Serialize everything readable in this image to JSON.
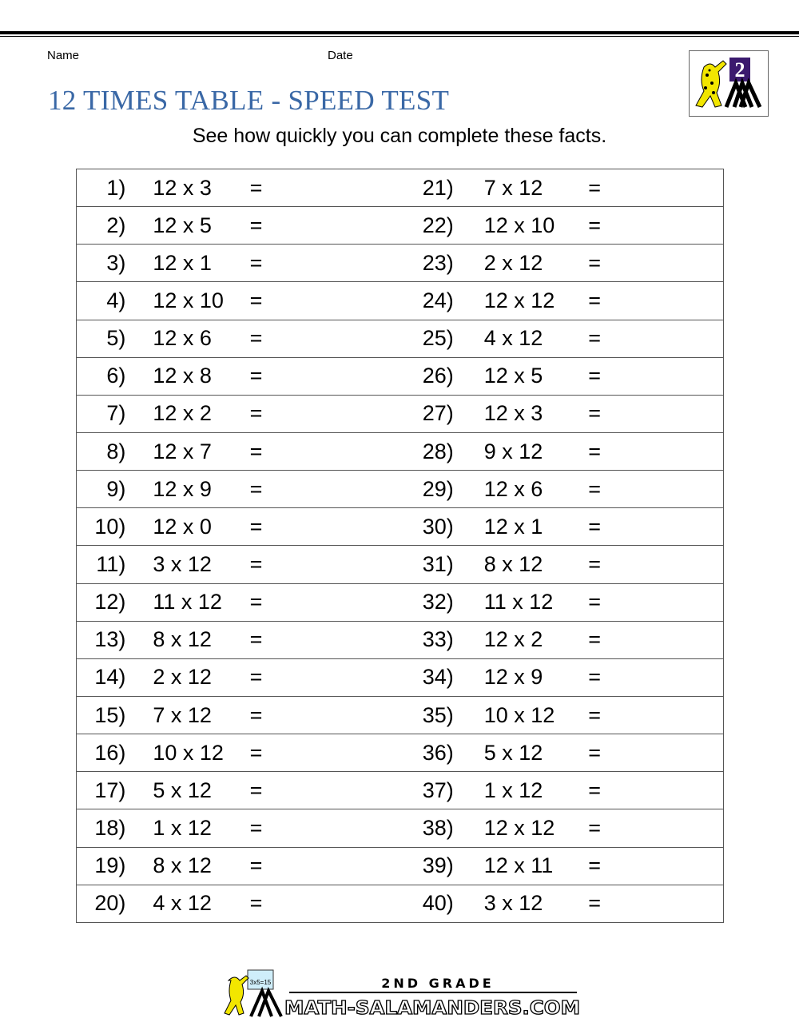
{
  "header": {
    "name_label": "Name",
    "date_label": "Date"
  },
  "title": "12 TIMES TABLE - SPEED TEST",
  "subtitle": "See how quickly you can complete these facts.",
  "colors": {
    "title": "#3a68a6",
    "logo_board": "#3b1a6e",
    "salamander": "#f2e600"
  },
  "logo": {
    "text": "2"
  },
  "questions": [
    {
      "num": "1)",
      "expr": "12 x 3",
      "eq": "="
    },
    {
      "num": "2)",
      "expr": "12 x 5",
      "eq": "="
    },
    {
      "num": "3)",
      "expr": "12 x 1",
      "eq": "="
    },
    {
      "num": "4)",
      "expr": "12 x 10",
      "eq": "="
    },
    {
      "num": "5)",
      "expr": "12 x 6",
      "eq": "="
    },
    {
      "num": "6)",
      "expr": "12 x 8",
      "eq": "="
    },
    {
      "num": "7)",
      "expr": "12 x 2",
      "eq": "="
    },
    {
      "num": "8)",
      "expr": "12 x 7",
      "eq": "="
    },
    {
      "num": "9)",
      "expr": "12 x 9",
      "eq": "="
    },
    {
      "num": "10)",
      "expr": "12 x 0",
      "eq": "="
    },
    {
      "num": "11)",
      "expr": "3 x 12",
      "eq": "="
    },
    {
      "num": "12)",
      "expr": "11 x 12",
      "eq": "="
    },
    {
      "num": "13)",
      "expr": "8 x 12",
      "eq": "="
    },
    {
      "num": "14)",
      "expr": "2 x 12",
      "eq": "="
    },
    {
      "num": "15)",
      "expr": "7 x 12",
      "eq": "="
    },
    {
      "num": "16)",
      "expr": "10 x 12",
      "eq": "="
    },
    {
      "num": "17)",
      "expr": "5 x 12",
      "eq": "="
    },
    {
      "num": "18)",
      "expr": "1 x 12",
      "eq": "="
    },
    {
      "num": "19)",
      "expr": "8 x 12",
      "eq": "="
    },
    {
      "num": "20)",
      "expr": "4 x 12",
      "eq": "="
    },
    {
      "num": "21)",
      "expr": "7 x 12",
      "eq": "="
    },
    {
      "num": "22)",
      "expr": "12 x 10",
      "eq": "="
    },
    {
      "num": "23)",
      "expr": "2 x 12",
      "eq": "="
    },
    {
      "num": "24)",
      "expr": "12 x 12",
      "eq": "="
    },
    {
      "num": "25)",
      "expr": "4 x 12",
      "eq": "="
    },
    {
      "num": "26)",
      "expr": "12 x 5",
      "eq": "="
    },
    {
      "num": "27)",
      "expr": "12 x 3",
      "eq": "="
    },
    {
      "num": "28)",
      "expr": "9 x 12",
      "eq": "="
    },
    {
      "num": "29)",
      "expr": "12 x 6",
      "eq": "="
    },
    {
      "num": "30)",
      "expr": "12 x 1",
      "eq": "="
    },
    {
      "num": "31)",
      "expr": "8 x 12",
      "eq": "="
    },
    {
      "num": "32)",
      "expr": "11 x 12",
      "eq": "="
    },
    {
      "num": "33)",
      "expr": "12 x 2",
      "eq": "="
    },
    {
      "num": "34)",
      "expr": "12 x 9",
      "eq": "="
    },
    {
      "num": "35)",
      "expr": "10 x 12",
      "eq": "="
    },
    {
      "num": "36)",
      "expr": "5 x 12",
      "eq": "="
    },
    {
      "num": "37)",
      "expr": "1 x 12",
      "eq": "="
    },
    {
      "num": "38)",
      "expr": "12 x 12",
      "eq": "="
    },
    {
      "num": "39)",
      "expr": "12 x 11",
      "eq": "="
    },
    {
      "num": "40)",
      "expr": "3 x 12",
      "eq": "="
    }
  ],
  "footer": {
    "grade": "2ND GRADE",
    "site": "MATH-SALAMANDERS.COM",
    "board_text": "3x5=15"
  }
}
